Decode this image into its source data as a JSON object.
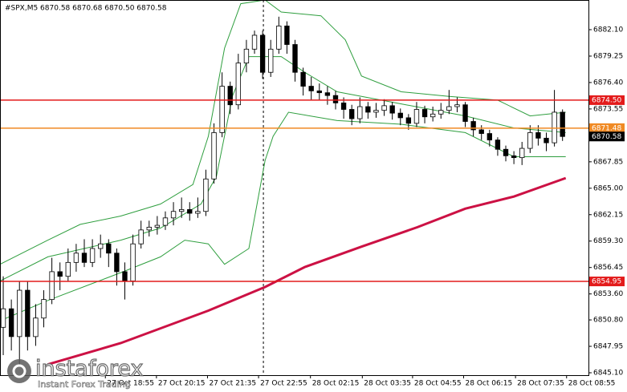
{
  "chart_data": {
    "type": "candlestick",
    "title": "#SPX,M5  6870.58 6870.68 6870.50 6870.58",
    "up_color": "#ffffff",
    "down_color": "#000000",
    "open": [
      6850,
      6852,
      6849,
      6854,
      6849,
      6851,
      6853,
      6856,
      6855.5,
      6857,
      6858,
      6857,
      6858.5,
      6859,
      6858,
      6856,
      6855,
      6859,
      6860.5,
      6860.8,
      6861,
      6861.8,
      6862.5,
      6862.7,
      6862.3,
      6862.5,
      6866,
      6871,
      6876,
      6874,
      6878.5,
      6880,
      6881.5,
      6877.5,
      6880,
      6882.5,
      6880.5,
      6877.5,
      6876,
      6875.5,
      6875.3,
      6875,
      6874.2,
      6873.5,
      6872.5,
      6873.8,
      6873.2,
      6873.4,
      6873.9,
      6873.1,
      6872.6,
      6872,
      6873.5,
      6872.7,
      6873,
      6873.4,
      6873.8,
      6874,
      6872.2,
      6871.3,
      6870.9,
      6870.2,
      6869.2,
      6868.5,
      6868.3,
      6869.3,
      6871,
      6870.4,
      6869.9,
      6873.2
    ],
    "high": [
      6855.5,
      6853,
      6855,
      6855,
      6852.5,
      6854,
      6857.5,
      6857,
      6858.5,
      6859,
      6859.5,
      6859.5,
      6860,
      6859.5,
      6858.5,
      6857,
      6860,
      6861.5,
      6861.5,
      6862,
      6862.5,
      6863.5,
      6864,
      6863.5,
      6864,
      6867,
      6872,
      6877.5,
      6876.5,
      6879.5,
      6881,
      6882,
      6882,
      6881,
      6883.5,
      6883,
      6881,
      6878,
      6877,
      6876.3,
      6876,
      6875.5,
      6874.8,
      6874,
      6874.8,
      6874.3,
      6874.2,
      6874.6,
      6874.3,
      6873.6,
      6873,
      6874.3,
      6873.9,
      6873.8,
      6874.2,
      6875.6,
      6874.8,
      6874.3,
      6872.6,
      6871.8,
      6871.3,
      6870.5,
      6869.6,
      6869,
      6870,
      6871.8,
      6871.8,
      6871,
      6875.6,
      6873.5
    ],
    "low": [
      6847,
      6847.5,
      6846,
      6847.5,
      6848,
      6850,
      6852.5,
      6854,
      6855,
      6856,
      6856.5,
      6856.5,
      6857.5,
      6856.5,
      6854.5,
      6853,
      6854.5,
      6858.5,
      6859.8,
      6860,
      6860.5,
      6861,
      6861.8,
      6861.5,
      6861.8,
      6862,
      6865.5,
      6870.5,
      6873,
      6873.5,
      6877.5,
      6879.5,
      6876.8,
      6877,
      6879.5,
      6879.5,
      6876.5,
      6875,
      6874.5,
      6874.5,
      6874,
      6873.5,
      6872.5,
      6871.8,
      6872,
      6872.5,
      6872.6,
      6872.8,
      6872.4,
      6871.8,
      6871.3,
      6871.6,
      6872,
      6872.2,
      6872.5,
      6873,
      6873.2,
      6871.6,
      6870.6,
      6870.2,
      6869.5,
      6868.5,
      6867.9,
      6867.6,
      6867.5,
      6868.8,
      6869.6,
      6869,
      6869.5,
      6870.1
    ],
    "close": [
      6852,
      6849,
      6854,
      6849,
      6851,
      6853,
      6856,
      6855.5,
      6857,
      6858,
      6857,
      6858.5,
      6859,
      6858,
      6856,
      6855,
      6859,
      6860.5,
      6860.8,
      6861,
      6861.8,
      6862.5,
      6862.7,
      6862.3,
      6862.5,
      6866,
      6871,
      6876,
      6874,
      6878.5,
      6880,
      6881.5,
      6877.5,
      6880,
      6882.5,
      6880.5,
      6877.5,
      6876,
      6875.5,
      6875.3,
      6875,
      6874.2,
      6873.5,
      6872.5,
      6873.8,
      6873.2,
      6873.4,
      6873.9,
      6873.1,
      6872.6,
      6872,
      6873.5,
      6872.7,
      6873,
      6873.4,
      6873.8,
      6874,
      6872.2,
      6871.3,
      6870.9,
      6870.2,
      6869.2,
      6868.5,
      6868.3,
      6869.3,
      6871,
      6870.4,
      6869.9,
      6873.2,
      6870.58
    ],
    "xlim": [
      -0.4,
      72.2
    ],
    "ylim": [
      6844.84,
      6885.3
    ],
    "xticks": [
      {
        "value": 12.6,
        "label": "27 Oct 18:55"
      },
      {
        "value": 18.9,
        "label": "27 Oct 20:15"
      },
      {
        "value": 25.2,
        "label": "27 Oct 21:35"
      },
      {
        "value": 31.5,
        "label": "27 Oct 22:55"
      },
      {
        "value": 37.9,
        "label": "28 Oct 02:15"
      },
      {
        "value": 44.3,
        "label": "28 Oct 03:35"
      },
      {
        "value": 50.5,
        "label": "28 Oct 04:55"
      },
      {
        "value": 56.8,
        "label": "28 Oct 06:15"
      },
      {
        "value": 63.2,
        "label": "28 Oct 07:35"
      },
      {
        "value": 69.5,
        "label": "28 Oct 08:55"
      }
    ],
    "yticks": [
      {
        "value": 6882.1,
        "label": "6882.10"
      },
      {
        "value": 6879.25,
        "label": "6879.25"
      },
      {
        "value": 6876.4,
        "label": "6876.40"
      },
      {
        "value": 6873.55,
        "label": "6873.55"
      },
      {
        "value": 6867.85,
        "label": "6867.85"
      },
      {
        "value": 6865,
        "label": "6865.00"
      },
      {
        "value": 6862.15,
        "label": "6862.15"
      },
      {
        "value": 6859.3,
        "label": "6859.30"
      },
      {
        "value": 6856.45,
        "label": "6856.45"
      },
      {
        "value": 6853.6,
        "label": "6853.60"
      },
      {
        "value": 6850.8,
        "label": "6850.80"
      },
      {
        "value": 6847.95,
        "label": "6847.95"
      },
      {
        "value": 6845.1,
        "label": "6845.10"
      }
    ],
    "overlays": [
      {
        "color": "#cc1144",
        "width": 3,
        "x": [
          5.5,
          14.5,
          25.3,
          32.3,
          37.2,
          44.2,
          51.1,
          57,
          63,
          69.4
        ],
        "values": [
          6846,
          6848.3,
          6851.8,
          6854.35,
          6856.5,
          6858.7,
          6860.8,
          6862.8,
          6864.1,
          6866.1
        ]
      },
      {
        "color": "#2e9e3e",
        "width": 1,
        "x": [
          -0.4,
          5.5,
          9.5,
          14.5,
          19.4,
          23.4,
          25.3,
          27.3,
          29.3,
          32.3,
          34.3,
          39.2,
          42.2,
          44.2,
          49.1,
          55,
          61,
          65,
          69.4
        ],
        "values": [
          6856.8,
          6859.4,
          6861.1,
          6862,
          6863.3,
          6865.4,
          6870.6,
          6880.1,
          6884.9,
          6885.3,
          6884,
          6883.6,
          6881,
          6877.1,
          6875.4,
          6874.9,
          6874.5,
          6872.8,
          6873.2
        ]
      },
      {
        "color": "#2e9e3e",
        "width": 1,
        "x": [
          -0.4,
          5.5,
          14.5,
          19.4,
          24.4,
          26.3,
          28.3,
          30.3,
          34.3,
          37.2,
          41.2,
          49.1,
          57,
          63,
          69.4
        ],
        "values": [
          6855,
          6857.6,
          6859.4,
          6860.7,
          6863.3,
          6866.3,
          6875,
          6879.2,
          6879.2,
          6877.5,
          6875.4,
          6874.1,
          6872.8,
          6871.5,
          6871
        ]
      },
      {
        "color": "#2e9e3e",
        "width": 1,
        "x": [
          -0.4,
          5.5,
          14.5,
          19.4,
          22.4,
          25.3,
          27.3,
          30.3,
          32.3,
          33.3,
          35.2,
          41.2,
          49.1,
          57,
          63,
          69.4
        ],
        "values": [
          6850.7,
          6852.9,
          6855.9,
          6857.6,
          6859.4,
          6859,
          6856.8,
          6858.5,
          6868,
          6870.6,
          6873.2,
          6872.3,
          6871.9,
          6871,
          6868.4,
          6868.4
        ]
      }
    ],
    "levels": [
      {
        "value": 6874.5,
        "label": "6874.50",
        "color": "#e31b1b",
        "line": true
      },
      {
        "value": 6871.48,
        "label": "6871.48",
        "color": "#f08a24",
        "line": true
      },
      {
        "value": 6854.95,
        "label": "6854.95",
        "color": "#e31b1b",
        "line": true
      },
      {
        "value": 6870.58,
        "label": "6870.58",
        "color": "#000000",
        "line": false
      }
    ],
    "watermark": {
      "brand": "instaforex",
      "tagline": "Instant Forex Trading"
    }
  }
}
